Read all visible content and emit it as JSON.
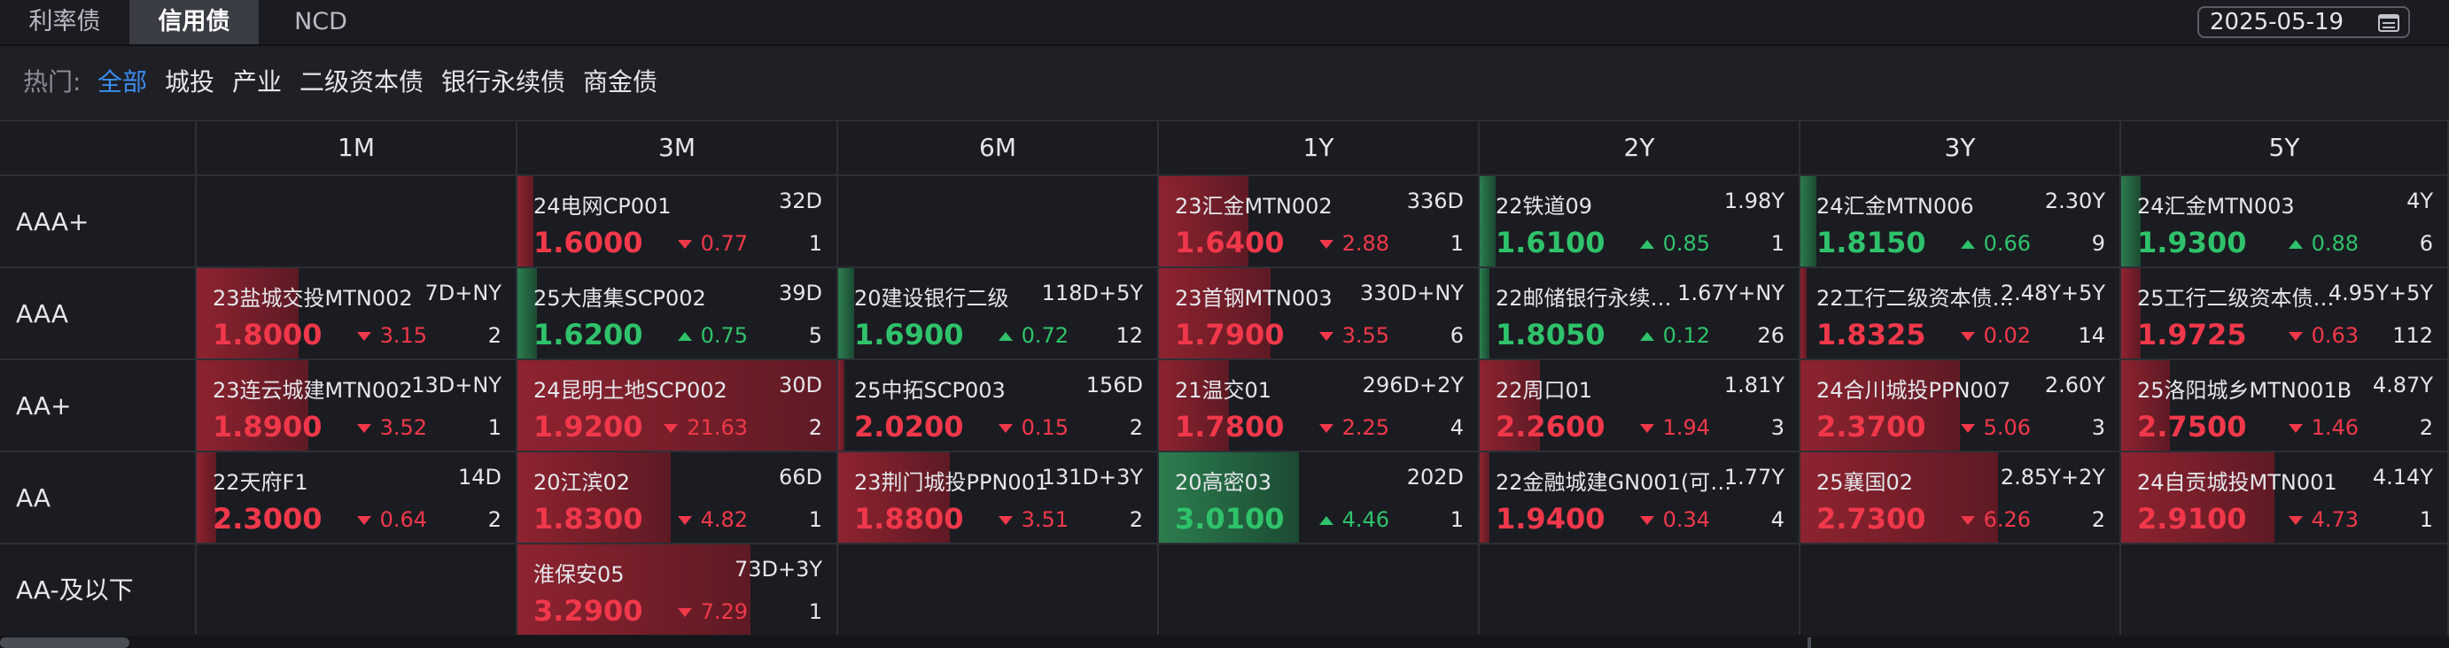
{
  "tabs": [
    {
      "label": "利率债",
      "active": false
    },
    {
      "label": "信用债",
      "active": true
    },
    {
      "label": "NCD",
      "active": false
    }
  ],
  "date": {
    "value": "2025-05-19",
    "icon": "calendar-icon"
  },
  "filters": {
    "label": "热门:",
    "items": [
      {
        "label": "全部",
        "active": true
      },
      {
        "label": "城投",
        "active": false
      },
      {
        "label": "产业",
        "active": false
      },
      {
        "label": "二级资本债",
        "active": false
      },
      {
        "label": "银行永续债",
        "active": false
      },
      {
        "label": "商金债",
        "active": false
      }
    ]
  },
  "colors": {
    "up": "#f0384a",
    "down": "#2fc26b",
    "accent": "#3b8df0"
  },
  "columns": [
    "1M",
    "3M",
    "6M",
    "1Y",
    "2Y",
    "3Y",
    "5Y"
  ],
  "rows": [
    {
      "label": "AAA+",
      "cells": [
        null,
        {
          "name": "24电网CP001",
          "term": "32D",
          "rate": "1.6000",
          "change": "0.77",
          "dir": "down",
          "count": "1",
          "color": "red",
          "fill": 0.05
        },
        null,
        {
          "name": "23汇金MTN002",
          "term": "336D",
          "rate": "1.6400",
          "change": "2.88",
          "dir": "down",
          "count": "1",
          "color": "red",
          "fill": 0.28
        },
        {
          "name": "22铁道09",
          "term": "1.98Y",
          "rate": "1.6100",
          "change": "0.85",
          "dir": "up",
          "count": "1",
          "color": "green",
          "fill": 0.05
        },
        {
          "name": "24汇金MTN006",
          "term": "2.30Y",
          "rate": "1.8150",
          "change": "0.66",
          "dir": "up",
          "count": "9",
          "color": "green",
          "fill": 0.05
        },
        {
          "name": "24汇金MTN003",
          "term": "4Y",
          "rate": "1.9300",
          "change": "0.88",
          "dir": "up",
          "count": "6",
          "color": "green",
          "fill": 0.06
        }
      ]
    },
    {
      "label": "AAA",
      "cells": [
        {
          "name": "23盐城交投MTN002",
          "term": "7D+NY",
          "rate": "1.8000",
          "change": "3.15",
          "dir": "down",
          "count": "2",
          "color": "red",
          "fill": 0.32
        },
        {
          "name": "25大唐集SCP002",
          "term": "39D",
          "rate": "1.6200",
          "change": "0.75",
          "dir": "up",
          "count": "5",
          "color": "green",
          "fill": 0.06
        },
        {
          "name": "20建设银行二级",
          "term": "118D+5Y",
          "rate": "1.6900",
          "change": "0.72",
          "dir": "up",
          "count": "12",
          "color": "green",
          "fill": 0.05
        },
        {
          "name": "23首钢MTN003",
          "term": "330D+NY",
          "rate": "1.7900",
          "change": "3.55",
          "dir": "down",
          "count": "6",
          "color": "red",
          "fill": 0.35
        },
        {
          "name": "22邮储银行永续…",
          "term": "1.67Y+NY",
          "rate": "1.8050",
          "change": "0.12",
          "dir": "up",
          "count": "26",
          "color": "green",
          "fill": 0.03
        },
        {
          "name": "22工行二级资本债…",
          "term": "2.48Y+5Y",
          "rate": "1.8325",
          "change": "0.02",
          "dir": "down",
          "count": "14",
          "color": "red",
          "fill": 0.01
        },
        {
          "name": "25工行二级资本债…",
          "term": "4.95Y+5Y",
          "rate": "1.9725",
          "change": "0.63",
          "dir": "down",
          "count": "112",
          "color": "red",
          "fill": 0.06
        }
      ]
    },
    {
      "label": "AA+",
      "cells": [
        {
          "name": "23连云城建MTN002",
          "term": "13D+NY",
          "rate": "1.8900",
          "change": "3.52",
          "dir": "down",
          "count": "1",
          "color": "red",
          "fill": 0.35
        },
        {
          "name": "24昆明土地SCP002",
          "term": "30D",
          "rate": "1.9200",
          "change": "21.63",
          "dir": "down",
          "count": "2",
          "color": "red",
          "fill": 1.0
        },
        {
          "name": "25中拓SCP003",
          "term": "156D",
          "rate": "2.0200",
          "change": "0.15",
          "dir": "down",
          "count": "2",
          "color": "red",
          "fill": 0.02
        },
        {
          "name": "21温交01",
          "term": "296D+2Y",
          "rate": "1.7800",
          "change": "2.25",
          "dir": "down",
          "count": "4",
          "color": "red",
          "fill": 0.22
        },
        {
          "name": "22周口01",
          "term": "1.81Y",
          "rate": "2.2600",
          "change": "1.94",
          "dir": "down",
          "count": "3",
          "color": "red",
          "fill": 0.19
        },
        {
          "name": "24合川城投PPN007",
          "term": "2.60Y",
          "rate": "2.3700",
          "change": "5.06",
          "dir": "down",
          "count": "3",
          "color": "red",
          "fill": 0.5
        },
        {
          "name": "25洛阳城乡MTN001B",
          "term": "4.87Y",
          "rate": "2.7500",
          "change": "1.46",
          "dir": "down",
          "count": "2",
          "color": "red",
          "fill": 0.15
        }
      ]
    },
    {
      "label": "AA",
      "cells": [
        {
          "name": "22天府F1",
          "term": "14D",
          "rate": "2.3000",
          "change": "0.64",
          "dir": "down",
          "count": "2",
          "color": "red",
          "fill": 0.06
        },
        {
          "name": "20江滨02",
          "term": "66D",
          "rate": "1.8300",
          "change": "4.82",
          "dir": "down",
          "count": "1",
          "color": "red",
          "fill": 0.48
        },
        {
          "name": "23荆门城投PPN001",
          "term": "131D+3Y",
          "rate": "1.8800",
          "change": "3.51",
          "dir": "down",
          "count": "2",
          "color": "red",
          "fill": 0.35
        },
        {
          "name": "20高密03",
          "term": "202D",
          "rate": "3.0100",
          "change": "4.46",
          "dir": "up",
          "count": "1",
          "color": "green",
          "fill": 0.44
        },
        {
          "name": "22金融城建GN001(可…",
          "term": "1.77Y",
          "rate": "1.9400",
          "change": "0.34",
          "dir": "down",
          "count": "4",
          "color": "red",
          "fill": 0.03
        },
        {
          "name": "25襄国02",
          "term": "2.85Y+2Y",
          "rate": "2.7300",
          "change": "6.26",
          "dir": "down",
          "count": "2",
          "color": "red",
          "fill": 0.62
        },
        {
          "name": "24自贡城投MTN001",
          "term": "4.14Y",
          "rate": "2.9100",
          "change": "4.73",
          "dir": "down",
          "count": "1",
          "color": "red",
          "fill": 0.47
        }
      ]
    },
    {
      "label": "AA-及以下",
      "cells": [
        null,
        {
          "name": "淮保安05",
          "term": "73D+3Y",
          "rate": "3.2900",
          "change": "7.29",
          "dir": "down",
          "count": "1",
          "color": "red",
          "fill": 0.73
        },
        null,
        null,
        null,
        null,
        null
      ]
    }
  ]
}
